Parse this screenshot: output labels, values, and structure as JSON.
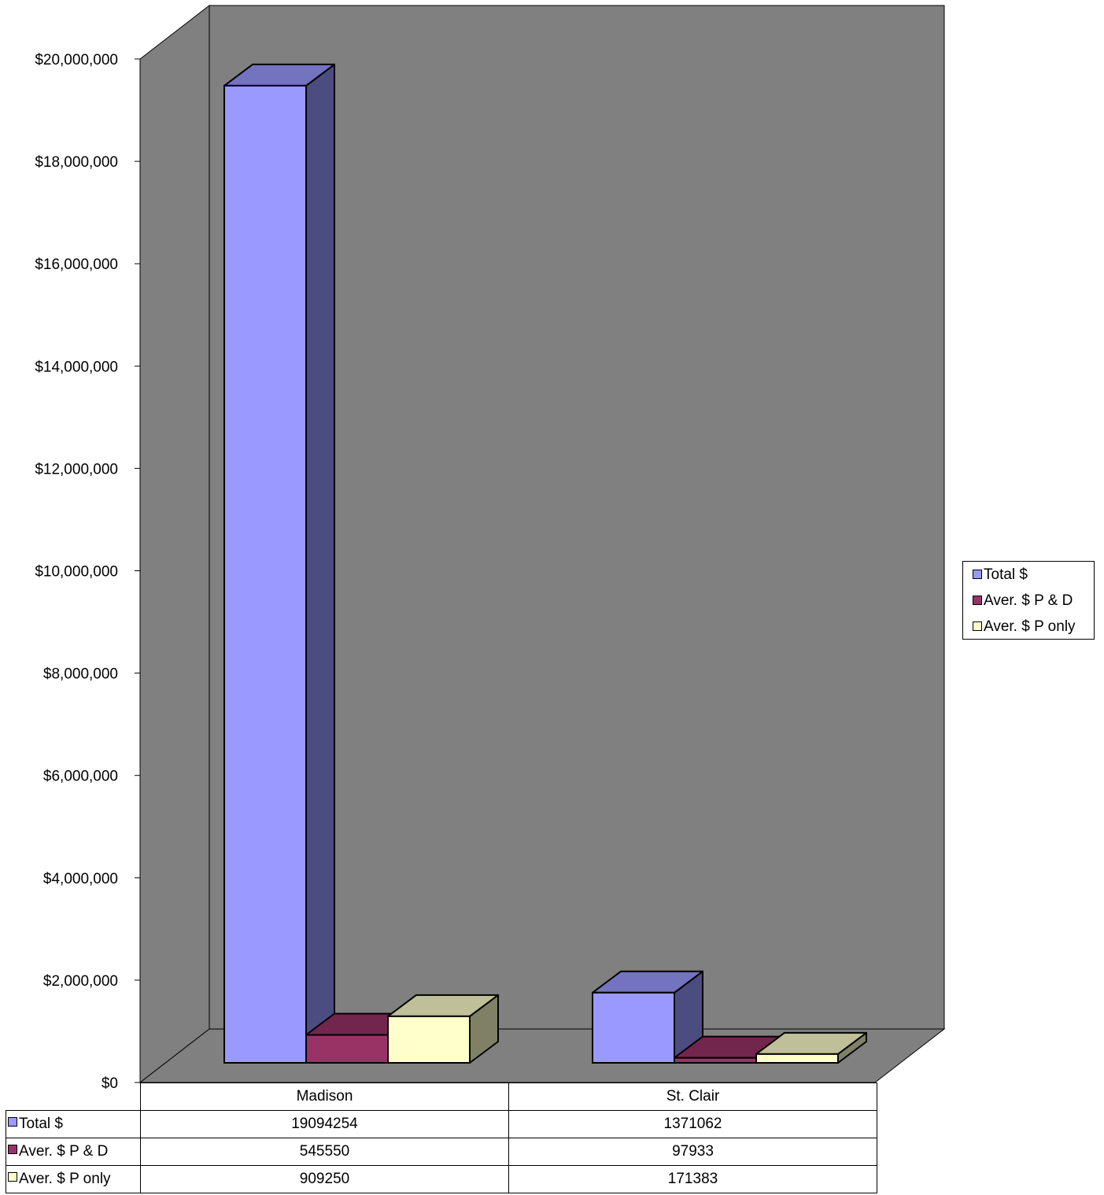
{
  "chart_data": {
    "type": "bar",
    "categories": [
      "Madison",
      "St. Clair"
    ],
    "series": [
      {
        "name": "Total $",
        "values": [
          19094254,
          1371062
        ],
        "color": "#9999FF",
        "side_color": "#4C4C80",
        "top_color": "#7373BF"
      },
      {
        "name": "Aver. $ P & D",
        "values": [
          545550,
          97933
        ],
        "color": "#993366",
        "side_color": "#4C1933",
        "top_color": "#73264D"
      },
      {
        "name": "Aver. $ P only",
        "values": [
          909250,
          171383
        ],
        "color": "#FFFFCC",
        "side_color": "#808066",
        "top_color": "#BFBF99"
      }
    ],
    "title": "",
    "xlabel": "",
    "ylabel": "",
    "ylim": [
      0,
      20000000
    ],
    "yticks": [
      0,
      2000000,
      4000000,
      6000000,
      8000000,
      10000000,
      12000000,
      14000000,
      16000000,
      18000000,
      20000000
    ],
    "ytick_labels": [
      "$0",
      "$2,000,000",
      "$4,000,000",
      "$6,000,000",
      "$8,000,000",
      "$10,000,000",
      "$12,000,000",
      "$14,000,000",
      "$16,000,000",
      "$18,000,000",
      "$20,000,000"
    ],
    "grid": false,
    "legend_position": "right",
    "wall_color": "#808080",
    "data_table": true,
    "table_rows": [
      {
        "label": "Total $",
        "values": [
          "19094254",
          "1371062"
        ]
      },
      {
        "label": "Aver. $ P & D",
        "values": [
          "545550",
          "97933"
        ]
      },
      {
        "label": "Aver. $ P only",
        "values": [
          "909250",
          "171383"
        ]
      }
    ]
  }
}
